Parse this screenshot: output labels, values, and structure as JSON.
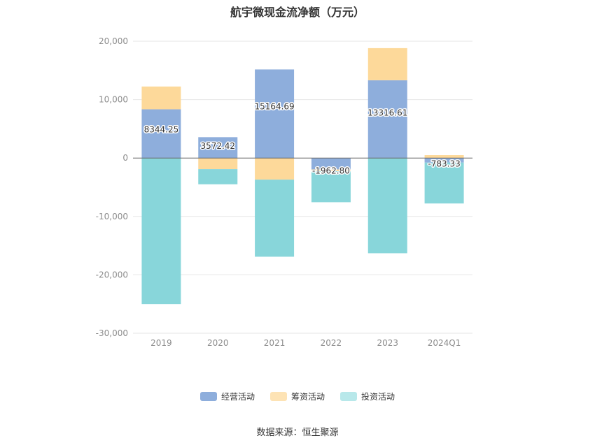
{
  "chart_data": {
    "type": "bar",
    "stacked": true,
    "title": "航宇微现金流净额（万元）",
    "categories": [
      "2019",
      "2020",
      "2021",
      "2022",
      "2023",
      "2024Q1"
    ],
    "ylim": [
      -30000,
      20000
    ],
    "yticks": [
      20000,
      10000,
      0,
      -10000,
      -20000,
      -30000
    ],
    "ytick_labels": [
      "20,000",
      "10,000",
      "0",
      "-10,000",
      "-20,000",
      "-30,000"
    ],
    "grid": true,
    "legend_position": "bottom",
    "series": [
      {
        "name": "经营活动",
        "color": "#8eaedc",
        "values": [
          8344.25,
          3572.42,
          15164.69,
          -1962.8,
          13316.61,
          -783.33
        ],
        "labels": [
          "8344.25",
          "3572.42",
          "15164.69",
          "-1962.80",
          "13316.61",
          "-783.33"
        ]
      },
      {
        "name": "筹资活动",
        "color": "#fdd99a",
        "values": [
          3900,
          -1900,
          -3700,
          -300,
          5500,
          500
        ]
      },
      {
        "name": "投资活动",
        "color": "#88d6da",
        "values": [
          -25000,
          -2600,
          -13200,
          -5300,
          -16300,
          -7000
        ]
      }
    ]
  },
  "legend": [
    {
      "label": "经营活动",
      "color": "#8eaedc"
    },
    {
      "label": "筹资活动",
      "color": "#fde3b5"
    },
    {
      "label": "投资活动",
      "color": "#b8e8ea"
    }
  ],
  "source": "数据来源：恒生聚源"
}
